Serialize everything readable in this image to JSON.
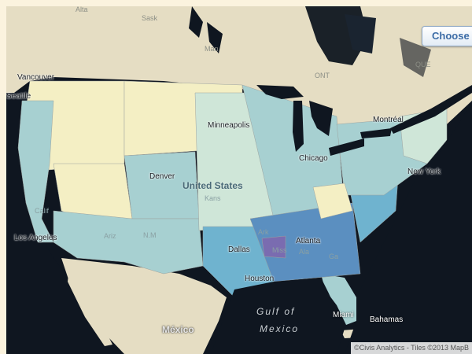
{
  "button": {
    "label": "Choose"
  },
  "attribution": "©Civis Analytics - Tiles ©2013 MapB",
  "colors": {
    "ocean": "#0f1620",
    "land": "#e5ddc3",
    "lowest": "#f4efc4",
    "low": "#cfe6d8",
    "mid": "#a7d0d1",
    "high": "#6fb3cf",
    "higher": "#5b8fc0",
    "highest": "#7a6cb0"
  },
  "legend_scale_hint": "light yellow = lowest, purple = highest (no printed legend)",
  "labels": {
    "alta": "Alta",
    "sask": "Sask",
    "man": "Man",
    "ont": "ONT",
    "que": "QUE",
    "vancouver": "Vancouver",
    "seattle": "Seattle",
    "minneapolis": "Minneapolis",
    "montreal": "Montréal",
    "chicago": "Chicago",
    "new_york": "New York",
    "denver": "Denver",
    "united_states": "United States",
    "kans": "Kans",
    "calif": "Calif",
    "los_angeles": "Los Angeles",
    "ariz": "Ariz",
    "nm": "N.M",
    "dallas": "Dallas",
    "houston": "Houston",
    "atlanta": "Atlanta",
    "ark": "Ark",
    "miss": "Miss",
    "ala": "Ala",
    "ga": "Ga",
    "miami": "Miami",
    "bahamas": "Bahamas",
    "gulf1": "Gulf of",
    "gulf2": "Mexico",
    "mexico": "México"
  }
}
